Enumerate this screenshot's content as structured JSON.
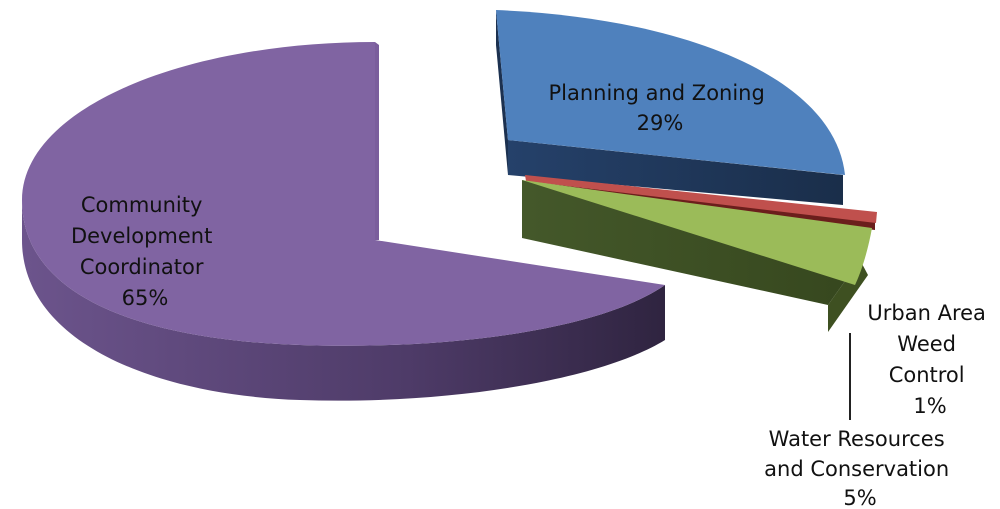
{
  "chart_data": {
    "type": "pie",
    "style": "3d-exploded",
    "slices": [
      {
        "name": "Planning and Zoning",
        "label_lines": [
          "Planning and Zoning"
        ],
        "pct_label": "29%",
        "value": 29,
        "color": "#4F81BD",
        "side_color": "#1F3552"
      },
      {
        "name": "Urban Area Weed Control",
        "label_lines": [
          "Urban Area",
          "Weed",
          "Control"
        ],
        "pct_label": "1%",
        "value": 1,
        "color": "#C0504D",
        "side_color": "#6B1E1C"
      },
      {
        "name": "Water Resources and Conservation",
        "label_lines": [
          "Water Resources",
          "and Conservation"
        ],
        "pct_label": "5%",
        "value": 5,
        "color": "#9BBB59",
        "side_color": "#3E5021"
      },
      {
        "name": "Community Development Coordinator",
        "label_lines": [
          "Community",
          "Development",
          "Coordinator"
        ],
        "pct_label": "65%",
        "value": 65,
        "color": "#8064A2",
        "side_color": "#3E2E55"
      }
    ],
    "title": "",
    "legend": "none",
    "leader_lines": true
  }
}
